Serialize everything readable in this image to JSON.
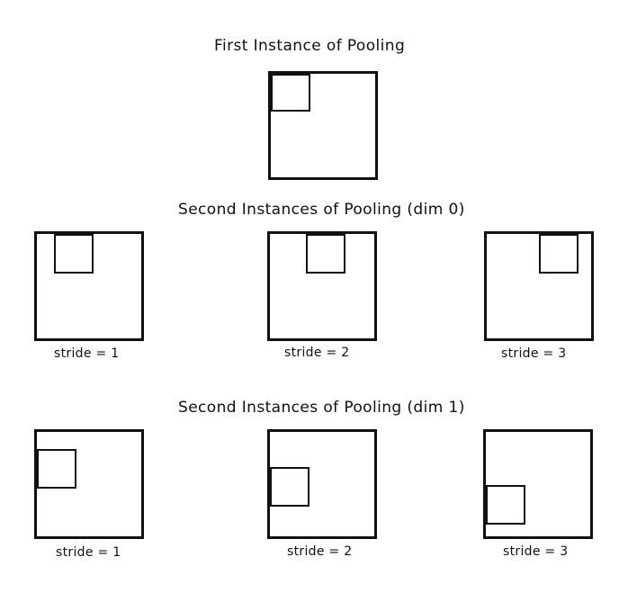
{
  "headings": {
    "first": "First Instance of Pooling",
    "dim0": "Second Instances of Pooling (dim 0)",
    "dim1": "Second Instances of Pooling (dim 1)"
  },
  "dim0_labels": [
    "stride = 1",
    "stride = 2",
    "stride = 3"
  ],
  "dim1_labels": [
    "stride = 1",
    "stride = 2",
    "stride = 3"
  ]
}
